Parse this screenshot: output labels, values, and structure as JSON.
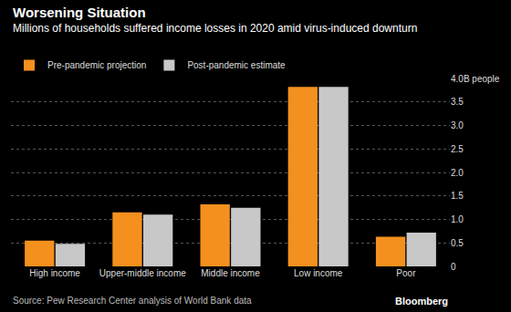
{
  "chart_data": {
    "type": "bar",
    "title": "Worsening Situation",
    "subtitle": "Millions of households suffered income losses in 2020 amid virus-induced downturn",
    "categories": [
      "High income",
      "Upper-middle income",
      "Middle income",
      "Low income",
      "Poor"
    ],
    "series": [
      {
        "name": "Pre-pandemic projection",
        "color": "#f4901e",
        "values": [
          0.55,
          1.15,
          1.32,
          3.82,
          0.63
        ]
      },
      {
        "name": "Post-pandemic estimate",
        "color": "#c8c8c8",
        "values": [
          0.48,
          1.1,
          1.25,
          3.82,
          0.72
        ]
      }
    ],
    "ylim": [
      0,
      4.0
    ],
    "yticks": [
      0,
      0.5,
      {
        "value": 1,
        "label": "1.0"
      },
      1.5,
      {
        "value": 2,
        "label": "2.0"
      },
      2.5,
      {
        "value": 3,
        "label": "3.0"
      },
      3.5,
      {
        "value": 4,
        "label": "4.0B people"
      }
    ],
    "grid": true,
    "legend": "top-left",
    "annotations": [
      "Source: Pew Research Center analysis of World Bank data",
      "Bloomberg"
    ]
  }
}
